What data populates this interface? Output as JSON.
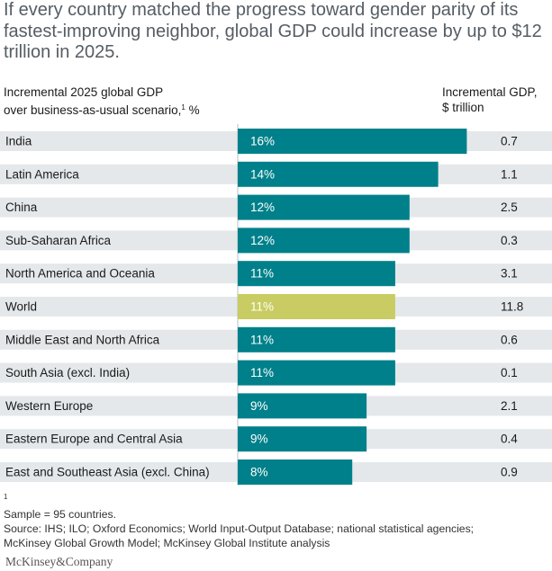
{
  "title": "If every country matched the progress toward gender parity of its fastest-improving neighbor, global GDP could increase by up to $12 trillion in 2025.",
  "header_left": {
    "line1": "Incremental 2025 global GDP",
    "line2_pre": "over business-as-usual scenario,",
    "line2_sup": "1",
    "line2_post": " %"
  },
  "header_right": {
    "line1": "Incremental GDP,",
    "line2": "$ trillion"
  },
  "colors": {
    "bar": "#00808a",
    "highlight_bar": "#c8cc62",
    "row_band": "#e4e8eb",
    "axis": "#b9c0c5"
  },
  "chart_data": {
    "type": "bar",
    "orientation": "horizontal",
    "value_unit": "%",
    "highlight_category": "World",
    "rows": [
      {
        "category": "India",
        "percent": 16,
        "label": "16%",
        "trillion": "0.7"
      },
      {
        "category": "Latin America",
        "percent": 14,
        "label": "14%",
        "trillion": "1.1"
      },
      {
        "category": "China",
        "percent": 12,
        "label": "12%",
        "trillion": "2.5"
      },
      {
        "category": "Sub-Saharan Africa",
        "percent": 12,
        "label": "12%",
        "trillion": "0.3"
      },
      {
        "category": "North America and Oceania",
        "percent": 11,
        "label": "11%",
        "trillion": "3.1"
      },
      {
        "category": "World",
        "percent": 11,
        "label": "11%",
        "trillion": "11.8"
      },
      {
        "category": "Middle East and North Africa",
        "percent": 11,
        "label": "11%",
        "trillion": "0.6"
      },
      {
        "category": "South Asia (excl. India)",
        "percent": 11,
        "label": "11%",
        "trillion": "0.1"
      },
      {
        "category": "Western Europe",
        "percent": 9,
        "label": "9%",
        "trillion": "2.1"
      },
      {
        "category": "Eastern Europe and Central Asia",
        "percent": 9,
        "label": "9%",
        "trillion": "0.4"
      },
      {
        "category": "East and Southeast Asia (excl. China)",
        "percent": 8,
        "label": "8%",
        "trillion": "0.9"
      }
    ]
  },
  "footnote": {
    "note": "Sample = 95 countries.",
    "note_marker": "1",
    "source_line1": "Source: IHS; ILO; Oxford Economics; World Input-Output Database; national statistical agencies;",
    "source_line2": "McKinsey Global Growth Model; McKinsey Global Institute analysis"
  },
  "brand": "McKinsey&Company"
}
